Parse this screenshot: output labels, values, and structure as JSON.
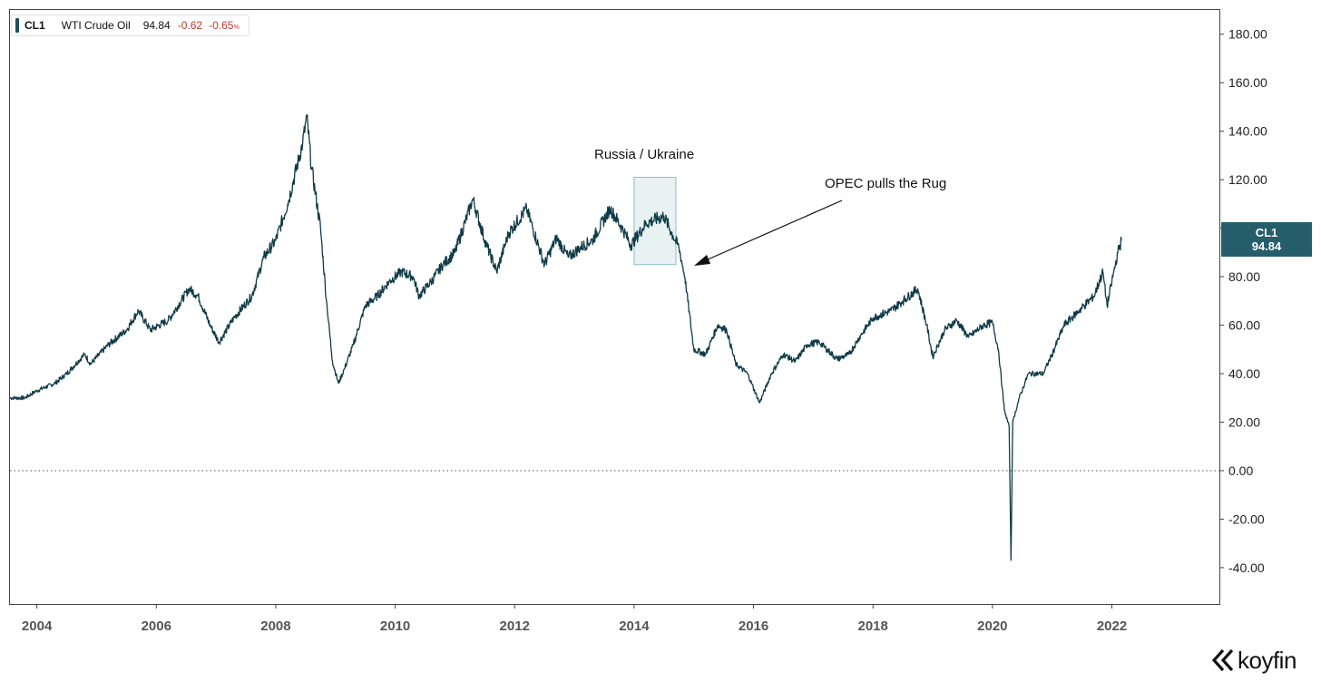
{
  "legend": {
    "symbol": "CL1",
    "name": "WTI Crude Oil",
    "last": "94.84",
    "change": "-0.62",
    "change_pct": "-0.65",
    "change_pct_unit": "%"
  },
  "price_tag": {
    "symbol": "CL1",
    "value": "94.84"
  },
  "annotations": {
    "russia_ukraine": "Russia / Ukraine",
    "opec": "OPEC pulls the Rug"
  },
  "brand": {
    "name": "koyfin"
  },
  "colors": {
    "line": "#0f3b47",
    "tag": "#265d6b",
    "highlight": "#e8f2f3",
    "negative": "#c0392b"
  },
  "chart_data": {
    "type": "line",
    "x_unit": "year",
    "xlim": [
      2003.55,
      2023.8
    ],
    "ylim": [
      -55,
      190
    ],
    "y_ticks": [
      "180.00",
      "160.00",
      "140.00",
      "120.00",
      "100.00",
      "80.00",
      "60.00",
      "40.00",
      "20.00",
      "0.00",
      "-20.00",
      "-40.00"
    ],
    "x_ticks": [
      "2004",
      "2006",
      "2008",
      "2010",
      "2012",
      "2014",
      "2016",
      "2018",
      "2020",
      "2022"
    ],
    "y_axis_side": "right",
    "zero_line": "dotted",
    "grid": false,
    "highlight_range": {
      "x": [
        2014.0,
        2014.7
      ],
      "y": [
        85,
        121
      ]
    },
    "series": [
      {
        "values": [
          [
            2003.55,
            30
          ],
          [
            2003.8,
            30
          ],
          [
            2004.0,
            33
          ],
          [
            2004.3,
            36
          ],
          [
            2004.5,
            40
          ],
          [
            2004.8,
            48
          ],
          [
            2004.9,
            44
          ],
          [
            2005.2,
            52
          ],
          [
            2005.5,
            58
          ],
          [
            2005.7,
            66
          ],
          [
            2005.9,
            58
          ],
          [
            2006.2,
            62
          ],
          [
            2006.55,
            75
          ],
          [
            2006.7,
            72
          ],
          [
            2006.9,
            60
          ],
          [
            2007.05,
            53
          ],
          [
            2007.3,
            63
          ],
          [
            2007.6,
            72
          ],
          [
            2007.8,
            88
          ],
          [
            2008.0,
            95
          ],
          [
            2008.2,
            110
          ],
          [
            2008.45,
            135
          ],
          [
            2008.52,
            146
          ],
          [
            2008.6,
            125
          ],
          [
            2008.75,
            100
          ],
          [
            2008.85,
            70
          ],
          [
            2008.95,
            45
          ],
          [
            2009.05,
            36
          ],
          [
            2009.15,
            42
          ],
          [
            2009.3,
            52
          ],
          [
            2009.5,
            68
          ],
          [
            2009.7,
            72
          ],
          [
            2009.9,
            78
          ],
          [
            2010.1,
            82
          ],
          [
            2010.3,
            80
          ],
          [
            2010.4,
            72
          ],
          [
            2010.6,
            78
          ],
          [
            2010.8,
            85
          ],
          [
            2011.0,
            90
          ],
          [
            2011.3,
            112
          ],
          [
            2011.5,
            95
          ],
          [
            2011.7,
            82
          ],
          [
            2011.9,
            98
          ],
          [
            2012.2,
            108
          ],
          [
            2012.5,
            85
          ],
          [
            2012.7,
            96
          ],
          [
            2012.9,
            88
          ],
          [
            2013.1,
            92
          ],
          [
            2013.3,
            95
          ],
          [
            2013.6,
            108
          ],
          [
            2013.8,
            100
          ],
          [
            2013.95,
            93
          ],
          [
            2014.2,
            102
          ],
          [
            2014.5,
            105
          ],
          [
            2014.65,
            97
          ],
          [
            2014.75,
            92
          ],
          [
            2014.85,
            80
          ],
          [
            2015.0,
            50
          ],
          [
            2015.2,
            48
          ],
          [
            2015.4,
            60
          ],
          [
            2015.55,
            58
          ],
          [
            2015.7,
            44
          ],
          [
            2015.9,
            40
          ],
          [
            2016.1,
            28
          ],
          [
            2016.3,
            40
          ],
          [
            2016.5,
            48
          ],
          [
            2016.7,
            45
          ],
          [
            2016.9,
            52
          ],
          [
            2017.1,
            53
          ],
          [
            2017.4,
            46
          ],
          [
            2017.6,
            48
          ],
          [
            2017.8,
            56
          ],
          [
            2018.0,
            63
          ],
          [
            2018.3,
            66
          ],
          [
            2018.5,
            70
          ],
          [
            2018.75,
            75
          ],
          [
            2018.9,
            60
          ],
          [
            2019.0,
            47
          ],
          [
            2019.2,
            58
          ],
          [
            2019.4,
            62
          ],
          [
            2019.6,
            55
          ],
          [
            2019.85,
            60
          ],
          [
            2020.0,
            61
          ],
          [
            2020.1,
            50
          ],
          [
            2020.2,
            25
          ],
          [
            2020.28,
            18
          ],
          [
            2020.31,
            -37
          ],
          [
            2020.34,
            20
          ],
          [
            2020.45,
            30
          ],
          [
            2020.6,
            40
          ],
          [
            2020.85,
            40
          ],
          [
            2021.0,
            48
          ],
          [
            2021.2,
            60
          ],
          [
            2021.45,
            66
          ],
          [
            2021.7,
            72
          ],
          [
            2021.85,
            82
          ],
          [
            2021.92,
            68
          ],
          [
            2022.0,
            78
          ],
          [
            2022.1,
            90
          ],
          [
            2022.16,
            94.84
          ]
        ]
      }
    ]
  }
}
